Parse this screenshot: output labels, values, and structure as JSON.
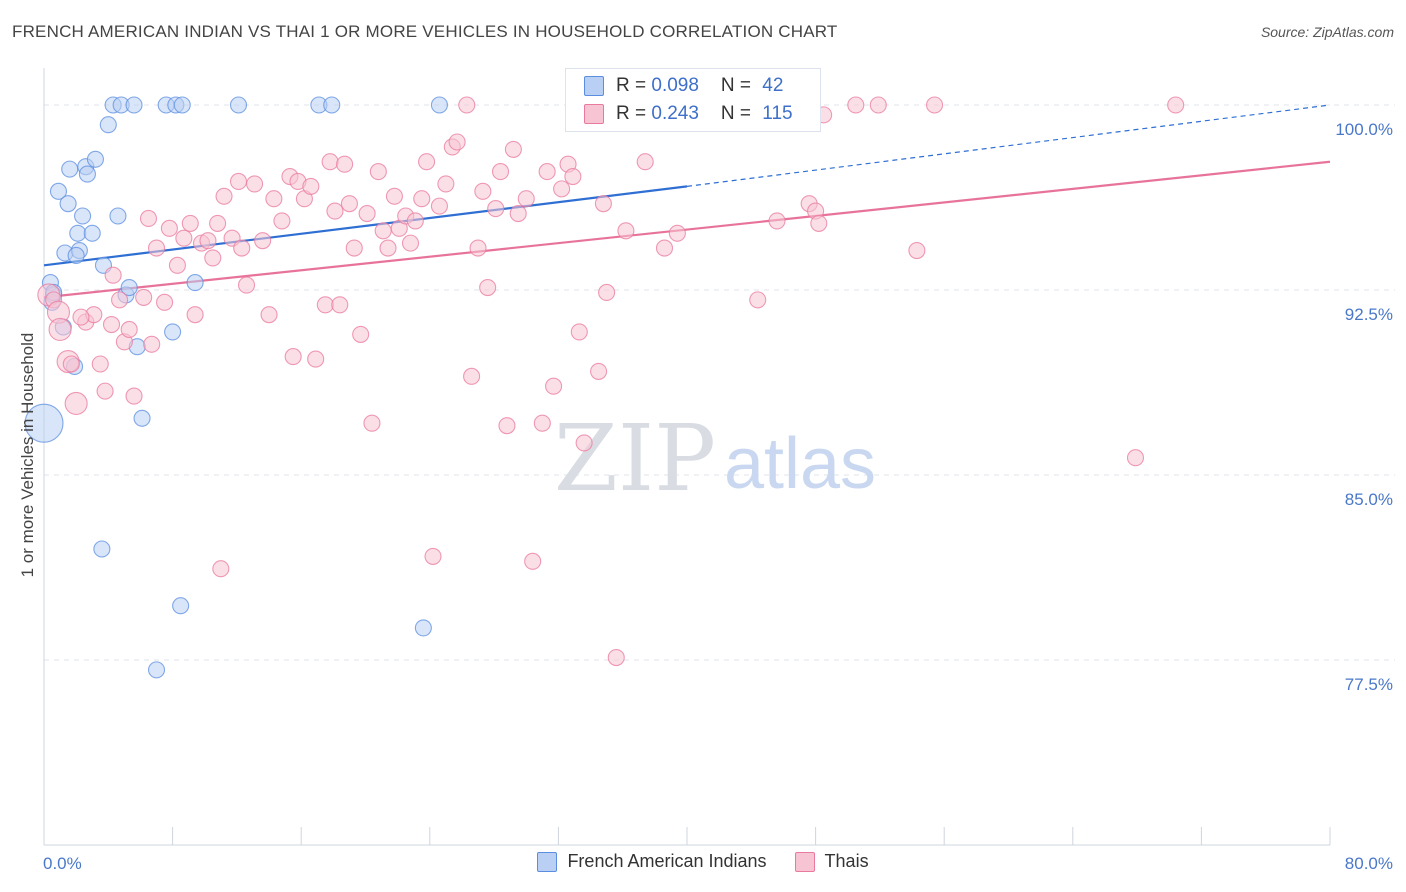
{
  "title": "FRENCH AMERICAN INDIAN VS THAI 1 OR MORE VEHICLES IN HOUSEHOLD CORRELATION CHART",
  "source": "Source: ZipAtlas.com",
  "watermark": {
    "zip": "ZIP",
    "atlas": "atlas"
  },
  "colors": {
    "blue": "#5b8ee0",
    "blue_fill": "#b9cff3",
    "blue_line": "#2f6fd3",
    "pink": "#e9799d",
    "pink_fill": "#f7c4d3",
    "pink_line": "#e8739a",
    "axis_text": "#4a78c9",
    "grid": "#dfe3ea"
  },
  "legend": {
    "blue": {
      "r_label": "R = ",
      "r_value": "0.098",
      "n_label": "N = ",
      "n_value": "42"
    },
    "pink": {
      "r_label": "R = ",
      "r_value": "0.243",
      "n_label": "N = ",
      "n_value": "115"
    }
  },
  "series_labels": {
    "blue": "French American Indians",
    "pink": "Thais"
  },
  "chart_data": {
    "type": "scatter",
    "title": "FRENCH AMERICAN INDIAN VS THAI 1 OR MORE VEHICLES IN HOUSEHOLD CORRELATION CHART",
    "xlabel": "",
    "ylabel": "1 or more Vehicles in Household",
    "xlim": [
      0,
      80
    ],
    "ylim": [
      70,
      101.5
    ],
    "x_tick_labels": [
      "0.0%",
      "80.0%"
    ],
    "y_ticks": [
      77.5,
      85.0,
      92.5,
      100.0
    ],
    "y_tick_labels": [
      "77.5%",
      "85.0%",
      "92.5%",
      "100.0%"
    ],
    "series": [
      {
        "name": "French American Indians",
        "color": "blue",
        "trend": {
          "x0": 0,
          "y0": 93.5,
          "x1": 40,
          "y1": 96.7,
          "dashed_to_x": 80,
          "dashed_to_y": 100.0
        },
        "points": [
          [
            0.0,
            87.1,
            3
          ],
          [
            0.4,
            92.8,
            1
          ],
          [
            0.5,
            92.0,
            1
          ],
          [
            0.6,
            92.3,
            1
          ],
          [
            0.9,
            96.5,
            1
          ],
          [
            1.2,
            91.0,
            1
          ],
          [
            1.3,
            94.0,
            1
          ],
          [
            1.5,
            96.0,
            1
          ],
          [
            1.6,
            97.4,
            1
          ],
          [
            1.9,
            89.4,
            1
          ],
          [
            2.1,
            94.8,
            1
          ],
          [
            2.2,
            94.1,
            1
          ],
          [
            2.4,
            95.5,
            1
          ],
          [
            2.6,
            97.5,
            1
          ],
          [
            2.7,
            97.2,
            1
          ],
          [
            3.0,
            94.8,
            1
          ],
          [
            3.2,
            97.8,
            1
          ],
          [
            3.7,
            93.5,
            1
          ],
          [
            4.0,
            99.2,
            1
          ],
          [
            4.3,
            100.0,
            1
          ],
          [
            4.6,
            95.5,
            1
          ],
          [
            4.8,
            100.0,
            1
          ],
          [
            5.1,
            92.3,
            1
          ],
          [
            5.3,
            92.6,
            1
          ],
          [
            5.6,
            100.0,
            1
          ],
          [
            5.8,
            90.2,
            1
          ],
          [
            6.1,
            87.3,
            1
          ],
          [
            7.0,
            77.1,
            1
          ],
          [
            7.6,
            100.0,
            1
          ],
          [
            8.0,
            90.8,
            1
          ],
          [
            8.2,
            100.0,
            1
          ],
          [
            8.5,
            79.7,
            1
          ],
          [
            8.6,
            100.0,
            1
          ],
          [
            9.4,
            92.8,
            1
          ],
          [
            12.1,
            100.0,
            1
          ],
          [
            17.1,
            100.0,
            1
          ],
          [
            17.9,
            100.0,
            1
          ],
          [
            23.6,
            78.8,
            1
          ],
          [
            24.6,
            100.0,
            1
          ],
          [
            3.6,
            82.0,
            1
          ],
          [
            0.6,
            92.4,
            1
          ],
          [
            2.0,
            93.9,
            1
          ]
        ]
      },
      {
        "name": "Thais",
        "color": "pink",
        "trend": {
          "x0": 0,
          "y0": 92.2,
          "x1": 80,
          "y1": 97.7
        },
        "points": [
          [
            0.3,
            92.3,
            2
          ],
          [
            0.6,
            92.1,
            1
          ],
          [
            0.9,
            91.6,
            2
          ],
          [
            1.0,
            90.9,
            2
          ],
          [
            1.5,
            89.6,
            2
          ],
          [
            1.7,
            89.5,
            1
          ],
          [
            2.0,
            87.9,
            2
          ],
          [
            2.6,
            91.2,
            1
          ],
          [
            3.1,
            91.5,
            1
          ],
          [
            3.5,
            89.5,
            1
          ],
          [
            3.8,
            88.4,
            1
          ],
          [
            4.2,
            91.1,
            1
          ],
          [
            4.3,
            93.1,
            1
          ],
          [
            4.7,
            92.1,
            1
          ],
          [
            5.0,
            90.4,
            1
          ],
          [
            5.3,
            90.9,
            1
          ],
          [
            5.6,
            88.2,
            1
          ],
          [
            6.2,
            92.2,
            1
          ],
          [
            6.5,
            95.4,
            1
          ],
          [
            6.7,
            90.3,
            1
          ],
          [
            7.0,
            94.2,
            1
          ],
          [
            7.5,
            92.0,
            1
          ],
          [
            7.8,
            95.0,
            1
          ],
          [
            8.3,
            93.5,
            1
          ],
          [
            8.7,
            94.6,
            1
          ],
          [
            9.1,
            95.2,
            1
          ],
          [
            9.4,
            91.5,
            1
          ],
          [
            9.8,
            94.4,
            1
          ],
          [
            10.2,
            94.5,
            1
          ],
          [
            10.5,
            93.8,
            1
          ],
          [
            10.8,
            95.2,
            1
          ],
          [
            11.2,
            96.3,
            1
          ],
          [
            11.7,
            94.6,
            1
          ],
          [
            12.1,
            96.9,
            1
          ],
          [
            12.3,
            94.2,
            1
          ],
          [
            12.6,
            92.7,
            1
          ],
          [
            13.1,
            96.8,
            1
          ],
          [
            13.6,
            94.5,
            1
          ],
          [
            14.0,
            91.5,
            1
          ],
          [
            14.3,
            96.2,
            1
          ],
          [
            14.8,
            95.3,
            1
          ],
          [
            15.3,
            97.1,
            1
          ],
          [
            15.5,
            89.8,
            1
          ],
          [
            15.8,
            96.9,
            1
          ],
          [
            16.2,
            96.2,
            1
          ],
          [
            16.6,
            96.7,
            1
          ],
          [
            16.9,
            89.7,
            1
          ],
          [
            17.5,
            91.9,
            1
          ],
          [
            17.8,
            97.7,
            1
          ],
          [
            18.1,
            95.7,
            1
          ],
          [
            18.4,
            91.9,
            1
          ],
          [
            18.7,
            97.6,
            1
          ],
          [
            19.0,
            96.0,
            1
          ],
          [
            19.3,
            94.2,
            1
          ],
          [
            19.7,
            90.7,
            1
          ],
          [
            20.1,
            95.6,
            1
          ],
          [
            20.4,
            87.1,
            1
          ],
          [
            20.8,
            97.3,
            1
          ],
          [
            21.1,
            94.9,
            1
          ],
          [
            21.4,
            94.2,
            1
          ],
          [
            21.8,
            96.3,
            1
          ],
          [
            22.1,
            95.0,
            1
          ],
          [
            22.5,
            95.5,
            1
          ],
          [
            22.8,
            94.4,
            1
          ],
          [
            23.1,
            95.3,
            1
          ],
          [
            23.5,
            96.2,
            1
          ],
          [
            23.8,
            97.7,
            1
          ],
          [
            24.2,
            81.7,
            1
          ],
          [
            24.6,
            95.9,
            1
          ],
          [
            25.0,
            96.8,
            1
          ],
          [
            25.4,
            98.3,
            1
          ],
          [
            25.7,
            98.5,
            1
          ],
          [
            26.3,
            100.0,
            1
          ],
          [
            26.6,
            89.0,
            1
          ],
          [
            27.0,
            94.2,
            1
          ],
          [
            27.3,
            96.5,
            1
          ],
          [
            27.6,
            92.6,
            1
          ],
          [
            28.1,
            95.8,
            1
          ],
          [
            28.4,
            97.3,
            1
          ],
          [
            28.8,
            87.0,
            1
          ],
          [
            29.2,
            98.2,
            1
          ],
          [
            29.5,
            95.6,
            1
          ],
          [
            30.0,
            96.2,
            1
          ],
          [
            30.4,
            81.5,
            1
          ],
          [
            31.0,
            87.1,
            1
          ],
          [
            31.3,
            97.3,
            1
          ],
          [
            31.7,
            88.6,
            1
          ],
          [
            32.2,
            96.6,
            1
          ],
          [
            32.6,
            97.6,
            1
          ],
          [
            32.9,
            97.1,
            1
          ],
          [
            33.3,
            90.8,
            1
          ],
          [
            33.6,
            86.3,
            1
          ],
          [
            34.5,
            89.2,
            1
          ],
          [
            34.8,
            96.0,
            1
          ],
          [
            35.0,
            92.4,
            1
          ],
          [
            35.6,
            77.6,
            1
          ],
          [
            36.2,
            94.9,
            1
          ],
          [
            37.4,
            97.7,
            1
          ],
          [
            38.6,
            94.2,
            1
          ],
          [
            39.4,
            94.8,
            1
          ],
          [
            43.5,
            100.0,
            1
          ],
          [
            44.4,
            92.1,
            1
          ],
          [
            45.6,
            95.3,
            1
          ],
          [
            47.6,
            96.0,
            1
          ],
          [
            48.0,
            95.7,
            1
          ],
          [
            48.2,
            95.2,
            1
          ],
          [
            48.5,
            99.6,
            1
          ],
          [
            50.5,
            100.0,
            1
          ],
          [
            51.9,
            100.0,
            1
          ],
          [
            54.3,
            94.1,
            1
          ],
          [
            55.4,
            100.0,
            1
          ],
          [
            67.9,
            85.7,
            1
          ],
          [
            70.4,
            100.0,
            1
          ],
          [
            2.3,
            91.4,
            1
          ],
          [
            11.0,
            81.2,
            1
          ]
        ]
      }
    ]
  }
}
